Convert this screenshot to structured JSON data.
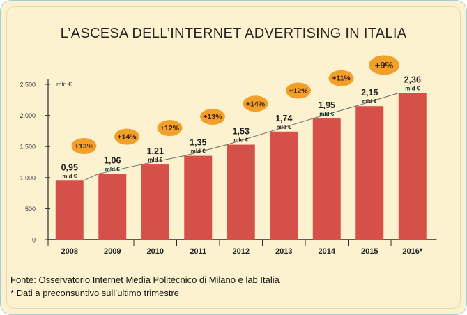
{
  "chart_data": {
    "type": "bar",
    "title": "L’ASCESA DELL’INTERNET ADVERTISING IN ITALIA",
    "unit_label": "mln €",
    "value_unit": "mld €",
    "ylim": [
      0,
      2500
    ],
    "yticks": [
      0,
      500,
      1000,
      1500,
      2000,
      2500
    ],
    "ytick_labels": [
      "0",
      "500",
      "1.000",
      "1.500",
      "2.000",
      "2.500"
    ],
    "categories": [
      "2008",
      "2009",
      "2010",
      "2011",
      "2012",
      "2013",
      "2014",
      "2015",
      "2016*"
    ],
    "values": [
      950,
      1060,
      1210,
      1350,
      1530,
      1740,
      1950,
      2150,
      2360
    ],
    "value_labels": [
      "0,95",
      "1,06",
      "1,21",
      "1,35",
      "1,53",
      "1,74",
      "1,95",
      "2,15",
      "2,36"
    ],
    "growth_labels": [
      "+13%",
      "+14%",
      "+12%",
      "+13%",
      "+14%",
      "+12%",
      "+11%",
      "+9%"
    ],
    "grid": false,
    "bar_color": "#d6504a",
    "badge_color": "#f3a02a",
    "trend_color": "#6a6a6a"
  },
  "footer": {
    "source": "Fonte: Osservatorio Internet Media Politecnico di Milano e lab Italia",
    "note": "* Dati a preconsuntivo sull’ultimo trimestre"
  }
}
